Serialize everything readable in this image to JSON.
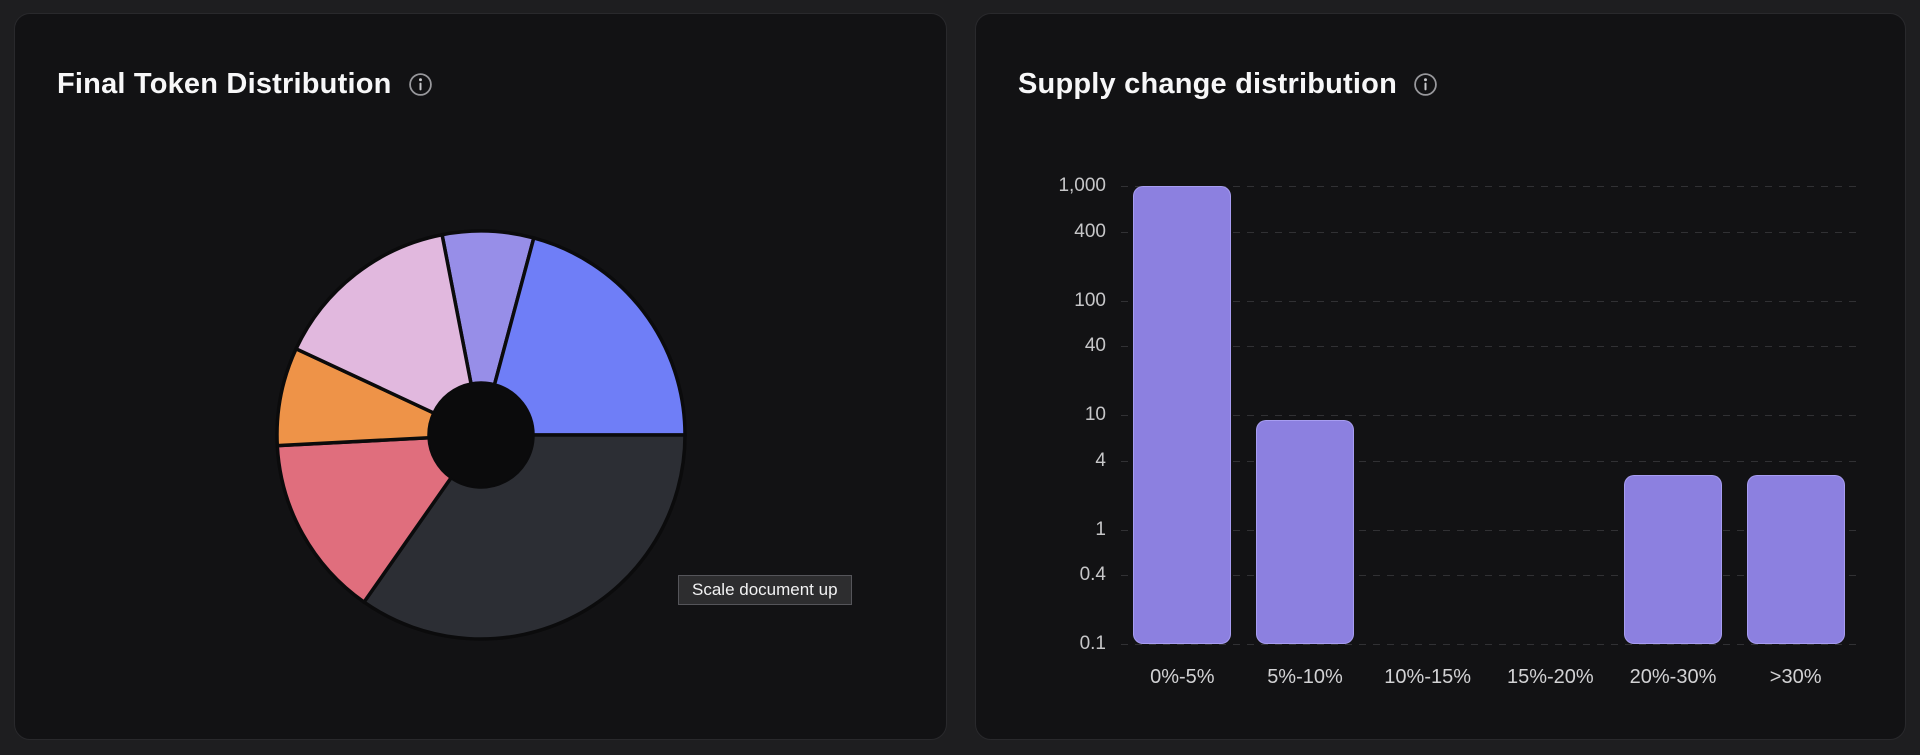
{
  "page": {
    "background": "#1e1e20",
    "card_background": "#121214"
  },
  "cards": [
    {
      "name": "final-token-distribution",
      "info_icon": "info-icon"
    },
    {
      "name": "supply-change-distribution",
      "info_icon": "info-icon"
    }
  ],
  "chart_data": [
    {
      "type": "pie",
      "title": "Final Token Distribution",
      "donut": true,
      "legend_position": "none",
      "tooltip": "Scale document up",
      "inner_radius_ratio": 0.25,
      "segments": [
        {
          "percent": 7.2,
          "color": "#978ee8",
          "start_deg": 349,
          "end_deg": 375
        },
        {
          "percent": 20.8,
          "color": "#6f7ef7",
          "start_deg": 15,
          "end_deg": 90
        },
        {
          "percent": 34.7,
          "color": "#2c2e34",
          "start_deg": 90,
          "end_deg": 215
        },
        {
          "percent": 14.4,
          "color": "#e06e7d",
          "start_deg": 215,
          "end_deg": 267
        },
        {
          "percent": 7.8,
          "color": "#ee9348",
          "start_deg": 267,
          "end_deg": 295
        },
        {
          "percent": 15.0,
          "color": "#e1b8de",
          "start_deg": 295,
          "end_deg": 349
        }
      ]
    },
    {
      "type": "bar",
      "title": "Supply change distribution",
      "categories": [
        "0%-5%",
        "5%-10%",
        "10%-15%",
        "15%-20%",
        "20%-30%",
        ">30%"
      ],
      "values": [
        1000,
        9,
        0,
        0,
        3,
        3
      ],
      "yscale": "log",
      "ylim": [
        0.1,
        1000
      ],
      "ytick_labels": [
        "1,000",
        "400",
        "100",
        "40",
        "10",
        "4",
        "1",
        "0.4",
        "0.1"
      ],
      "ytick_values": [
        1000,
        400,
        100,
        40,
        10,
        4,
        1,
        0.4,
        0.1
      ],
      "xlabel": "",
      "ylabel": "",
      "grid": "horizontal-dashed",
      "legend_position": "none",
      "bar_color": "#8c80e0"
    }
  ]
}
